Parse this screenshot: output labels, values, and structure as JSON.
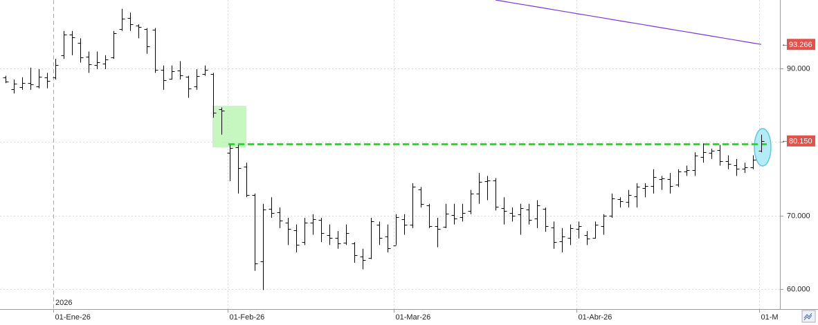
{
  "chart_data": {
    "type": "ohlc",
    "year_label": "2026",
    "categories": [
      null,
      null,
      null,
      null,
      null,
      null,
      "01-Ene-26",
      null,
      null,
      null,
      null,
      null,
      null,
      null,
      null,
      null,
      null,
      null,
      null,
      null,
      null,
      null,
      null,
      null,
      null,
      null,
      null,
      "01-Feb-26",
      null,
      null,
      null,
      null,
      null,
      null,
      null,
      null,
      null,
      null,
      null,
      null,
      null,
      null,
      null,
      null,
      null,
      null,
      null,
      "01-Mar-26",
      null,
      null,
      null,
      null,
      null,
      null,
      null,
      null,
      null,
      null,
      null,
      null,
      null,
      null,
      null,
      null,
      null,
      null,
      null,
      null,
      null,
      "01-Abr-26",
      null,
      null,
      null,
      null,
      null,
      null,
      null,
      null,
      null,
      null,
      null,
      null,
      null,
      null,
      null,
      null,
      null,
      null,
      null,
      null,
      null,
      "01-M"
    ],
    "open": [
      88.8,
      87.2,
      87.5,
      88.0,
      87.6,
      88.8,
      88.8,
      91.8,
      94.6,
      93.5,
      91.6,
      90.5,
      90.7,
      91.5,
      95.4,
      96.9,
      95.8,
      95.4,
      95.3,
      89.8,
      88.6,
      89.7,
      88.9,
      87.6,
      89.2,
      89.2,
      84.5,
      78.5,
      79.3,
      76.7,
      72.8,
      63.8,
      70.9,
      70.5,
      69.0,
      68.0,
      66.4,
      69.0,
      69.4,
      67.4,
      67.0,
      66.3,
      66.2,
      64.4,
      64.3,
      68.8,
      67.2,
      65.9,
      69.5,
      68.8,
      73.6,
      71.4,
      68.6,
      68.5,
      70.1,
      69.8,
      70.6,
      73.0,
      74.7,
      74.8,
      71.0,
      70.4,
      70.2,
      70.8,
      69.6,
      70.9,
      68.4,
      66.5,
      67.0,
      68.2,
      67.4,
      67.0,
      68.6,
      70.0,
      72.2,
      71.9,
      72.6,
      73.7,
      74.0,
      75.0,
      75.0,
      74.2,
      76.0,
      76.2,
      78.0,
      78.5,
      78.9,
      77.4,
      76.8,
      76.4,
      76.6,
      78.8
    ],
    "high": [
      89.0,
      88.5,
      88.8,
      90.1,
      89.9,
      89.4,
      91.3,
      95.1,
      95.1,
      94.1,
      92.3,
      92.3,
      91.8,
      95.1,
      98.1,
      97.6,
      96.0,
      95.5,
      95.5,
      90.4,
      90.4,
      91.0,
      89.0,
      89.9,
      90.4,
      89.4,
      84.7,
      79.6,
      79.6,
      77.2,
      73.0,
      71.6,
      72.5,
      71.1,
      69.7,
      68.8,
      69.7,
      70.2,
      69.7,
      68.8,
      67.9,
      68.8,
      66.4,
      65.5,
      69.7,
      69.2,
      68.8,
      70.2,
      70.2,
      74.4,
      73.9,
      71.6,
      69.7,
      71.6,
      71.6,
      71.6,
      73.5,
      75.8,
      75.4,
      75.1,
      72.5,
      71.1,
      71.6,
      71.6,
      72.1,
      71.1,
      69.2,
      68.3,
      68.8,
      69.2,
      67.9,
      69.2,
      70.2,
      73.0,
      72.5,
      73.5,
      74.4,
      74.4,
      76.3,
      75.4,
      75.8,
      76.3,
      76.8,
      78.6,
      79.8,
      79.1,
      79.6,
      78.2,
      77.7,
      77.2,
      78.2,
      81.0
    ],
    "low": [
      88.0,
      86.6,
      87.1,
      87.1,
      87.3,
      87.3,
      88.5,
      91.3,
      91.8,
      90.8,
      89.4,
      89.9,
      89.9,
      91.3,
      95.1,
      95.1,
      94.1,
      92.0,
      89.4,
      87.1,
      88.5,
      88.5,
      86.0,
      87.1,
      89.0,
      83.3,
      81.0,
      74.7,
      73.0,
      72.5,
      62.5,
      59.9,
      69.7,
      68.3,
      66.0,
      65.0,
      66.0,
      67.4,
      66.4,
      66.0,
      65.5,
      66.0,
      63.6,
      62.7,
      64.1,
      66.0,
      65.0,
      66.0,
      67.4,
      68.3,
      71.1,
      68.3,
      65.7,
      68.3,
      68.8,
      69.2,
      70.2,
      71.6,
      72.1,
      70.7,
      68.8,
      69.2,
      67.4,
      68.8,
      68.3,
      67.8,
      65.5,
      65.0,
      66.0,
      66.9,
      66.0,
      66.9,
      67.4,
      69.7,
      71.1,
      71.1,
      71.1,
      72.5,
      73.0,
      73.5,
      73.0,
      73.9,
      75.4,
      75.4,
      77.2,
      77.7,
      76.8,
      76.3,
      75.4,
      75.8,
      76.3,
      78.6
    ],
    "close": [
      88.2,
      87.9,
      88.0,
      87.8,
      88.9,
      88.3,
      90.5,
      94.6,
      94.2,
      91.5,
      90.6,
      90.8,
      91.2,
      94.8,
      96.8,
      96.0,
      95.6,
      93.0,
      89.8,
      88.4,
      89.6,
      89.1,
      87.3,
      89.0,
      89.8,
      84.0,
      84.3,
      79.2,
      76.5,
      72.8,
      63.5,
      70.8,
      70.4,
      69.3,
      68.2,
      66.0,
      69.0,
      69.5,
      67.6,
      67.0,
      66.2,
      67.6,
      64.6,
      64.0,
      69.2,
      67.0,
      65.6,
      69.8,
      68.8,
      73.9,
      71.6,
      68.6,
      68.2,
      70.3,
      69.6,
      70.4,
      73.0,
      74.6,
      74.8,
      71.2,
      70.6,
      70.0,
      71.0,
      69.4,
      71.4,
      68.6,
      66.4,
      67.2,
      68.3,
      68.6,
      66.9,
      68.8,
      70.0,
      72.3,
      72.0,
      72.8,
      73.9,
      74.0,
      75.2,
      75.1,
      74.0,
      76.0,
      76.2,
      78.2,
      78.6,
      78.8,
      77.4,
      77.0,
      76.4,
      76.6,
      77.6,
      80.15
    ],
    "color": "#000000",
    "close_label": "80.150",
    "label_color": "#e0524a",
    "ma": {
      "color": "#7b35d6",
      "last_label": "93.266",
      "values": [
        null,
        null,
        null,
        null,
        null,
        null,
        null,
        null,
        null,
        null,
        null,
        null,
        null,
        null,
        null,
        null,
        null,
        null,
        null,
        null,
        null,
        null,
        null,
        null,
        null,
        null,
        null,
        null,
        null,
        null,
        null,
        null,
        null,
        null,
        null,
        null,
        null,
        null,
        null,
        null,
        null,
        null,
        null,
        null,
        null,
        null,
        null,
        null,
        null,
        null,
        null,
        null,
        null,
        null,
        null,
        null,
        null,
        null,
        null,
        99.3,
        99.11,
        98.92,
        98.73,
        98.55,
        98.36,
        98.17,
        97.98,
        97.79,
        97.6,
        97.41,
        97.23,
        97.04,
        96.85,
        96.66,
        96.47,
        96.28,
        96.1,
        95.91,
        95.72,
        95.53,
        95.34,
        95.15,
        94.97,
        94.78,
        94.59,
        94.4,
        94.21,
        94.02,
        93.83,
        93.64,
        93.45,
        93.266
      ]
    },
    "support_level": 79.7,
    "support_color": "#22dd22",
    "ylim": [
      57.3,
      99.3
    ],
    "yticks": [
      {
        "value": 60,
        "label": "60.000"
      },
      {
        "value": 70,
        "label": "70.000"
      },
      {
        "value": 80,
        "label": "80.000"
      },
      {
        "value": 90,
        "label": "90.000"
      }
    ],
    "grid": true
  }
}
